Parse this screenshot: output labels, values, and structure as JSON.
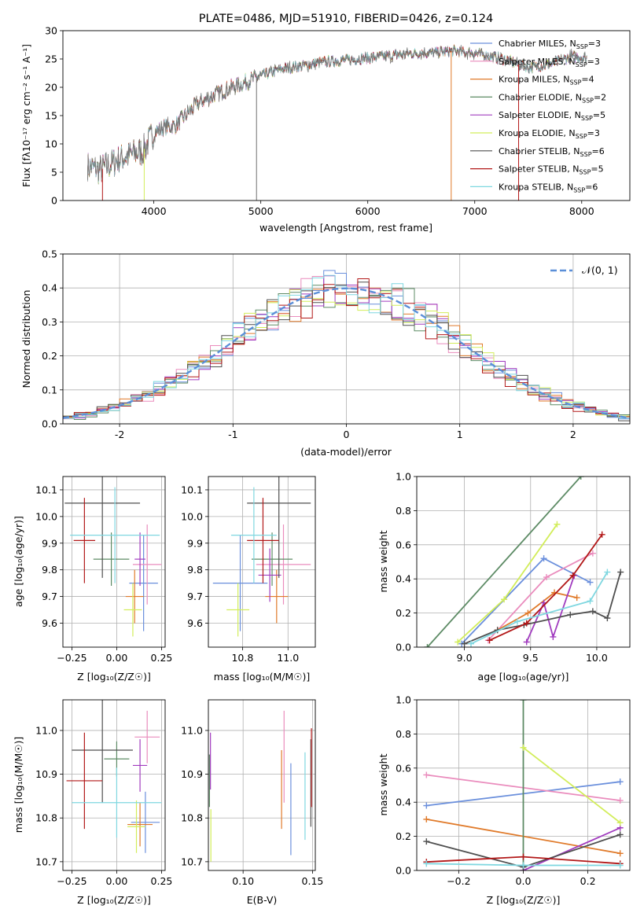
{
  "colors": [
    "#6a8fdc",
    "#ea8cbd",
    "#e07a2a",
    "#5d8b65",
    "#a13cbf",
    "#d2ed5a",
    "#4f4f4f",
    "#b21818",
    "#7fd7e0"
  ],
  "chart_data": [
    {
      "id": "spectrum",
      "type": "line",
      "title": "PLATE=0486, MJD=51910, FIBERID=0426, z=0.124",
      "xlabel": "wavelength [Angstrom, rest frame]",
      "ylabel": "Flux [fλ10⁻¹⁷ erg cm⁻² s⁻¹ A⁻¹]",
      "xlim": [
        3150,
        8450
      ],
      "ylim": [
        0,
        30
      ],
      "xticks": [
        4000,
        5000,
        6000,
        7000,
        8000
      ],
      "yticks": [
        0,
        5,
        10,
        15,
        20,
        25,
        30
      ],
      "legend_position": "upper-right",
      "continuum": {
        "x": [
          3380,
          3500,
          3700,
          3900,
          4000,
          4100,
          4200,
          4400,
          4600,
          4800,
          5000,
          5200,
          5400,
          5600,
          5800,
          6000,
          6200,
          6400,
          6600,
          6800,
          7000,
          7150,
          7300,
          7500,
          7700,
          7900,
          8050
        ],
        "y": [
          6,
          5.4,
          7.5,
          8.8,
          12,
          13,
          13.2,
          17,
          19,
          20.5,
          22,
          23.3,
          23.8,
          24.5,
          24.8,
          25.2,
          25.5,
          26,
          26.1,
          26.4,
          26,
          25.5,
          24.8,
          23.5,
          24,
          25.5,
          25.2
        ]
      },
      "series": [
        {
          "name": "Chabrier MILES, N_SSP=3",
          "label": "Chabrier MILES, N",
          "sub": "SSP",
          "tail": "=3"
        },
        {
          "name": "Salpeter MILES, N_SSP=3",
          "label": "Salpeter MILES, N",
          "sub": "SSP",
          "tail": "=3"
        },
        {
          "name": "Kroupa MILES, N_SSP=4",
          "label": "Kroupa MILES, N",
          "sub": "SSP",
          "tail": "=4"
        },
        {
          "name": "Chabrier ELODIE, N_SSP=2",
          "label": "Chabrier ELODIE, N",
          "sub": "SSP",
          "tail": "=2"
        },
        {
          "name": "Salpeter ELODIE, N_SSP=5",
          "label": "Salpeter ELODIE, N",
          "sub": "SSP",
          "tail": "=5"
        },
        {
          "name": "Kroupa ELODIE, N_SSP=3",
          "label": "Kroupa ELODIE, N",
          "sub": "SSP",
          "tail": "=3"
        },
        {
          "name": "Chabrier STELIB, N_SSP=6",
          "label": "Chabrier STELIB, N",
          "sub": "SSP",
          "tail": "=6"
        },
        {
          "name": "Salpeter STELIB, N_SSP=5",
          "label": "Salpeter STELIB, N",
          "sub": "SSP",
          "tail": "=5"
        },
        {
          "name": "Kroupa STELIB, N_SSP=6",
          "label": "Kroupa STELIB, N",
          "sub": "SSP",
          "tail": "=6"
        }
      ]
    },
    {
      "id": "residuals",
      "type": "histogram",
      "xlabel": "(data-model)/error",
      "ylabel": "Normed distribution",
      "xlim": [
        -2.5,
        2.5
      ],
      "ylim": [
        0,
        0.5
      ],
      "xticks": [
        -2,
        -1,
        0,
        1,
        2
      ],
      "yticks": [
        0,
        0.1,
        0.2,
        0.3,
        0.4,
        0.5
      ],
      "grid": true,
      "bin_width": 0.1,
      "gaussian_label": "𝒩(0, 1)",
      "legend_position": "upper-right"
    },
    {
      "id": "age-vs-z",
      "type": "errorbar",
      "xlabel": "Z [log₁₀(Z/Z☉)]",
      "ylabel": "age  [log₁₀(age/yr)]",
      "xlim": [
        -0.3,
        0.27
      ],
      "ylim": [
        9.51,
        10.15
      ],
      "xticks": [
        -0.25,
        0,
        0.25
      ],
      "xticklabels": [
        "−0.25",
        "0.00",
        "0.25"
      ],
      "yticks": [
        9.6,
        9.7,
        9.8,
        9.9,
        10.0,
        10.1
      ],
      "grid": true,
      "points": [
        {
          "x": 0.15,
          "xerr": 0.08,
          "y": 9.75,
          "yerr": 0.18
        },
        {
          "x": 0.17,
          "xerr": 0.08,
          "y": 9.82,
          "yerr": 0.15
        },
        {
          "x": 0.1,
          "xerr": 0.05,
          "y": 9.7,
          "yerr": 0.1
        },
        {
          "x": -0.03,
          "xerr": 0.1,
          "y": 9.84,
          "yerr": 0.1
        },
        {
          "x": 0.13,
          "xerr": 0.03,
          "y": 9.84,
          "yerr": 0.1
        },
        {
          "x": 0.09,
          "xerr": 0.05,
          "y": 9.65,
          "yerr": 0.1
        },
        {
          "x": -0.08,
          "xerr": 0.21,
          "y": 10.05,
          "yerr": 0.28
        },
        {
          "x": -0.18,
          "xerr": 0.06,
          "y": 9.91,
          "yerr": 0.16
        },
        {
          "x": -0.01,
          "xerr": 0.25,
          "y": 9.93,
          "yerr": 0.18
        }
      ]
    },
    {
      "id": "age-vs-mass",
      "type": "errorbar",
      "xlabel": "mass [log₁₀(M/M☉)]",
      "xlim": [
        10.65,
        11.12
      ],
      "ylim": [
        9.51,
        10.15
      ],
      "xticks": [
        10.8,
        11.0
      ],
      "xticklabels": [
        "10.8",
        "11.0"
      ],
      "yticks": [
        9.6,
        9.7,
        9.8,
        9.9,
        10.0,
        10.1
      ],
      "grid": true,
      "points": [
        {
          "x": 10.79,
          "xerr": 0.12,
          "y": 9.75,
          "yerr": 0.18
        },
        {
          "x": 10.98,
          "xerr": 0.12,
          "y": 9.82,
          "yerr": 0.15
        },
        {
          "x": 10.95,
          "xerr": 0.05,
          "y": 9.7,
          "yerr": 0.1
        },
        {
          "x": 10.93,
          "xerr": 0.09,
          "y": 9.84,
          "yerr": 0.1
        },
        {
          "x": 10.92,
          "xerr": 0.05,
          "y": 9.78,
          "yerr": 0.1
        },
        {
          "x": 10.78,
          "xerr": 0.05,
          "y": 9.65,
          "yerr": 0.1
        },
        {
          "x": 10.96,
          "xerr": 0.14,
          "y": 10.05,
          "yerr": 0.28
        },
        {
          "x": 10.89,
          "xerr": 0.07,
          "y": 9.91,
          "yerr": 0.16
        },
        {
          "x": 10.85,
          "xerr": 0.1,
          "y": 9.93,
          "yerr": 0.18
        }
      ]
    },
    {
      "id": "weight-vs-age",
      "type": "line",
      "xlabel": "age  [log₁₀(age/yr)]",
      "ylabel": "mass weight",
      "xlim": [
        8.64,
        10.25
      ],
      "ylim": [
        0,
        1.0
      ],
      "xticks": [
        9.0,
        9.5,
        10.0
      ],
      "xticklabels": [
        "9.0",
        "9.5",
        "10.0"
      ],
      "yticks": [
        0,
        0.2,
        0.4,
        0.6,
        0.8,
        1.0
      ],
      "grid": true,
      "series": [
        {
          "x": [
            8.98,
            9.6,
            9.95
          ],
          "y": [
            0.02,
            0.52,
            0.38
          ]
        },
        {
          "x": [
            9.18,
            9.62,
            9.97
          ],
          "y": [
            0.04,
            0.41,
            0.55
          ]
        },
        {
          "x": [
            9.25,
            9.48,
            9.68,
            9.85
          ],
          "y": [
            0.1,
            0.2,
            0.32,
            0.29
          ]
        },
        {
          "x": [
            8.72,
            9.88
          ],
          "y": [
            0,
            1.0
          ]
        },
        {
          "x": [
            9.47,
            9.6,
            9.67,
            9.83
          ],
          "y": [
            0.03,
            0.26,
            0.06,
            0.42
          ]
        },
        {
          "x": [
            8.95,
            9.3,
            9.7
          ],
          "y": [
            0.03,
            0.28,
            0.72
          ]
        },
        {
          "x": [
            9.0,
            9.25,
            9.45,
            9.8,
            9.97,
            10.08,
            10.18
          ],
          "y": [
            0.02,
            0.1,
            0.13,
            0.19,
            0.21,
            0.17,
            0.44
          ]
        },
        {
          "x": [
            9.19,
            9.47,
            9.82,
            10.04
          ],
          "y": [
            0.04,
            0.14,
            0.42,
            0.66
          ]
        },
        {
          "x": [
            9.05,
            9.4,
            9.95,
            10.08
          ],
          "y": [
            0.02,
            0.15,
            0.27,
            0.44
          ]
        }
      ]
    },
    {
      "id": "mass-vs-z",
      "type": "errorbar",
      "xlabel": "Z [log₁₀(Z/Z☉)]",
      "ylabel": "mass [log₁₀(M/M☉)]",
      "xlim": [
        -0.3,
        0.27
      ],
      "ylim": [
        10.68,
        11.07
      ],
      "xticks": [
        -0.25,
        0,
        0.25
      ],
      "xticklabels": [
        "−0.25",
        "0.00",
        "0.25"
      ],
      "yticks": [
        10.7,
        10.8,
        10.9,
        11.0
      ],
      "grid": true,
      "points": [
        {
          "x": 0.16,
          "xerr": 0.08,
          "y": 10.79,
          "yerr": 0.07
        },
        {
          "x": 0.17,
          "xerr": 0.07,
          "y": 10.985,
          "yerr": 0.06
        },
        {
          "x": 0.13,
          "xerr": 0.07,
          "y": 10.785,
          "yerr": 0.05
        },
        {
          "x": 0.0,
          "xerr": 0.07,
          "y": 10.935,
          "yerr": 0.04
        },
        {
          "x": 0.13,
          "xerr": 0.04,
          "y": 10.92,
          "yerr": 0.06
        },
        {
          "x": 0.11,
          "xerr": 0.05,
          "y": 10.78,
          "yerr": 0.06
        },
        {
          "x": -0.08,
          "xerr": 0.17,
          "y": 10.955,
          "yerr": 0.12
        },
        {
          "x": -0.18,
          "xerr": 0.1,
          "y": 10.885,
          "yerr": 0.11
        },
        {
          "x": 0.0,
          "xerr": 0.25,
          "y": 10.835,
          "yerr": 0.08
        }
      ]
    },
    {
      "id": "mass-vs-ebv",
      "type": "errorbar",
      "xlabel": "E(B-V)",
      "xlim": [
        0.075,
        0.152
      ],
      "ylim": [
        10.68,
        11.07
      ],
      "xticks": [
        0.1,
        0.15
      ],
      "xticklabels": [
        "0.10",
        "0.15"
      ],
      "yticks": [
        10.7,
        10.8,
        10.9,
        11.0
      ],
      "grid": true,
      "points": [
        {
          "x": 0.1344,
          "y": 10.82,
          "yerr": 0.105
        },
        {
          "x": 0.1295,
          "y": 10.94,
          "yerr": 0.105
        },
        {
          "x": 0.1277,
          "y": 10.865,
          "yerr": 0.09
        },
        {
          "x": 0.0758,
          "y": 10.885,
          "yerr": 0.06
        },
        {
          "x": 0.0765,
          "y": 10.93,
          "yerr": 0.065
        },
        {
          "x": 0.0768,
          "y": 10.76,
          "yerr": 0.06
        },
        {
          "x": 0.1488,
          "y": 10.88,
          "yerr": 0.1
        },
        {
          "x": 0.1492,
          "y": 10.915,
          "yerr": 0.09
        },
        {
          "x": 0.1446,
          "y": 10.85,
          "yerr": 0.1
        }
      ]
    },
    {
      "id": "weight-vs-z",
      "type": "line",
      "xlabel": "Z [log₁₀(Z/Z☉)]",
      "ylabel": "mass weight",
      "xlim": [
        -0.33,
        0.33
      ],
      "ylim": [
        0,
        1.0
      ],
      "xticks": [
        -0.2,
        0.0,
        0.2
      ],
      "xticklabels": [
        "−0.2",
        "0.0",
        "0.2"
      ],
      "yticks": [
        0,
        0.2,
        0.4,
        0.6,
        0.8,
        1.0
      ],
      "grid": true,
      "series": [
        {
          "x": [
            -0.3,
            0.3
          ],
          "y": [
            0.38,
            0.52
          ]
        },
        {
          "x": [
            -0.3,
            0.3
          ],
          "y": [
            0.56,
            0.41
          ]
        },
        {
          "x": [
            -0.3,
            0.3
          ],
          "y": [
            0.3,
            0.1
          ]
        },
        {
          "x": [
            0.0,
            0.0
          ],
          "y": [
            0.0,
            1.0
          ]
        },
        {
          "x": [
            0.0,
            0.3
          ],
          "y": [
            0.0,
            0.25
          ]
        },
        {
          "x": [
            0.0,
            0.3
          ],
          "y": [
            0.72,
            0.28
          ]
        },
        {
          "x": [
            -0.3,
            0.0,
            0.3
          ],
          "y": [
            0.17,
            0.02,
            0.21
          ]
        },
        {
          "x": [
            -0.3,
            0.0,
            0.3
          ],
          "y": [
            0.05,
            0.08,
            0.04
          ]
        },
        {
          "x": [
            -0.3,
            0.0,
            0.3
          ],
          "y": [
            0.04,
            0.03,
            0.03
          ]
        }
      ]
    }
  ]
}
